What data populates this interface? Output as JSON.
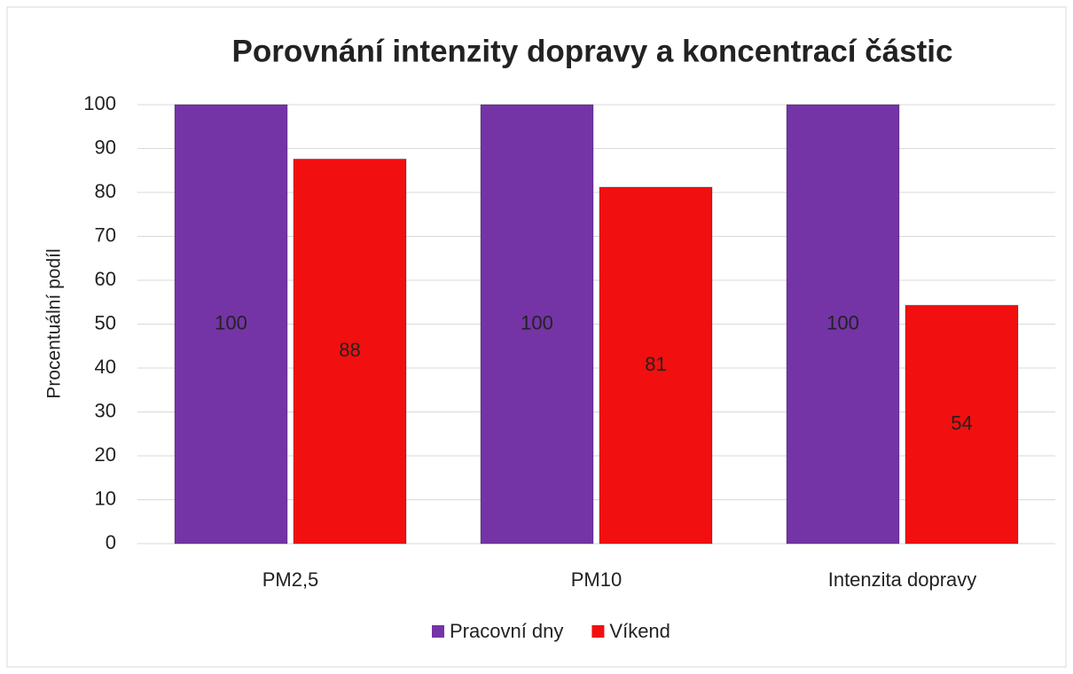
{
  "chart_data": {
    "type": "bar",
    "title": "Porovnání intenzity dopravy a koncentrací částic",
    "y_label": "Procentuální podíl",
    "categories": [
      "PM2,5",
      "PM10",
      "Intenzita dopravy"
    ],
    "series": [
      {
        "name": "Pracovní dny",
        "color": "#7434a6",
        "values": [
          100,
          100,
          100
        ]
      },
      {
        "name": "Víkend",
        "color": "#f20f0f",
        "values": [
          87.6,
          81.2,
          54.3
        ],
        "value_labels": [
          "88",
          "81",
          "54"
        ]
      }
    ],
    "ylim": [
      0,
      100
    ],
    "yticks": [
      0,
      10,
      20,
      30,
      40,
      50,
      60,
      70,
      80,
      90,
      100
    ],
    "grid": true,
    "legend": "bottom"
  }
}
